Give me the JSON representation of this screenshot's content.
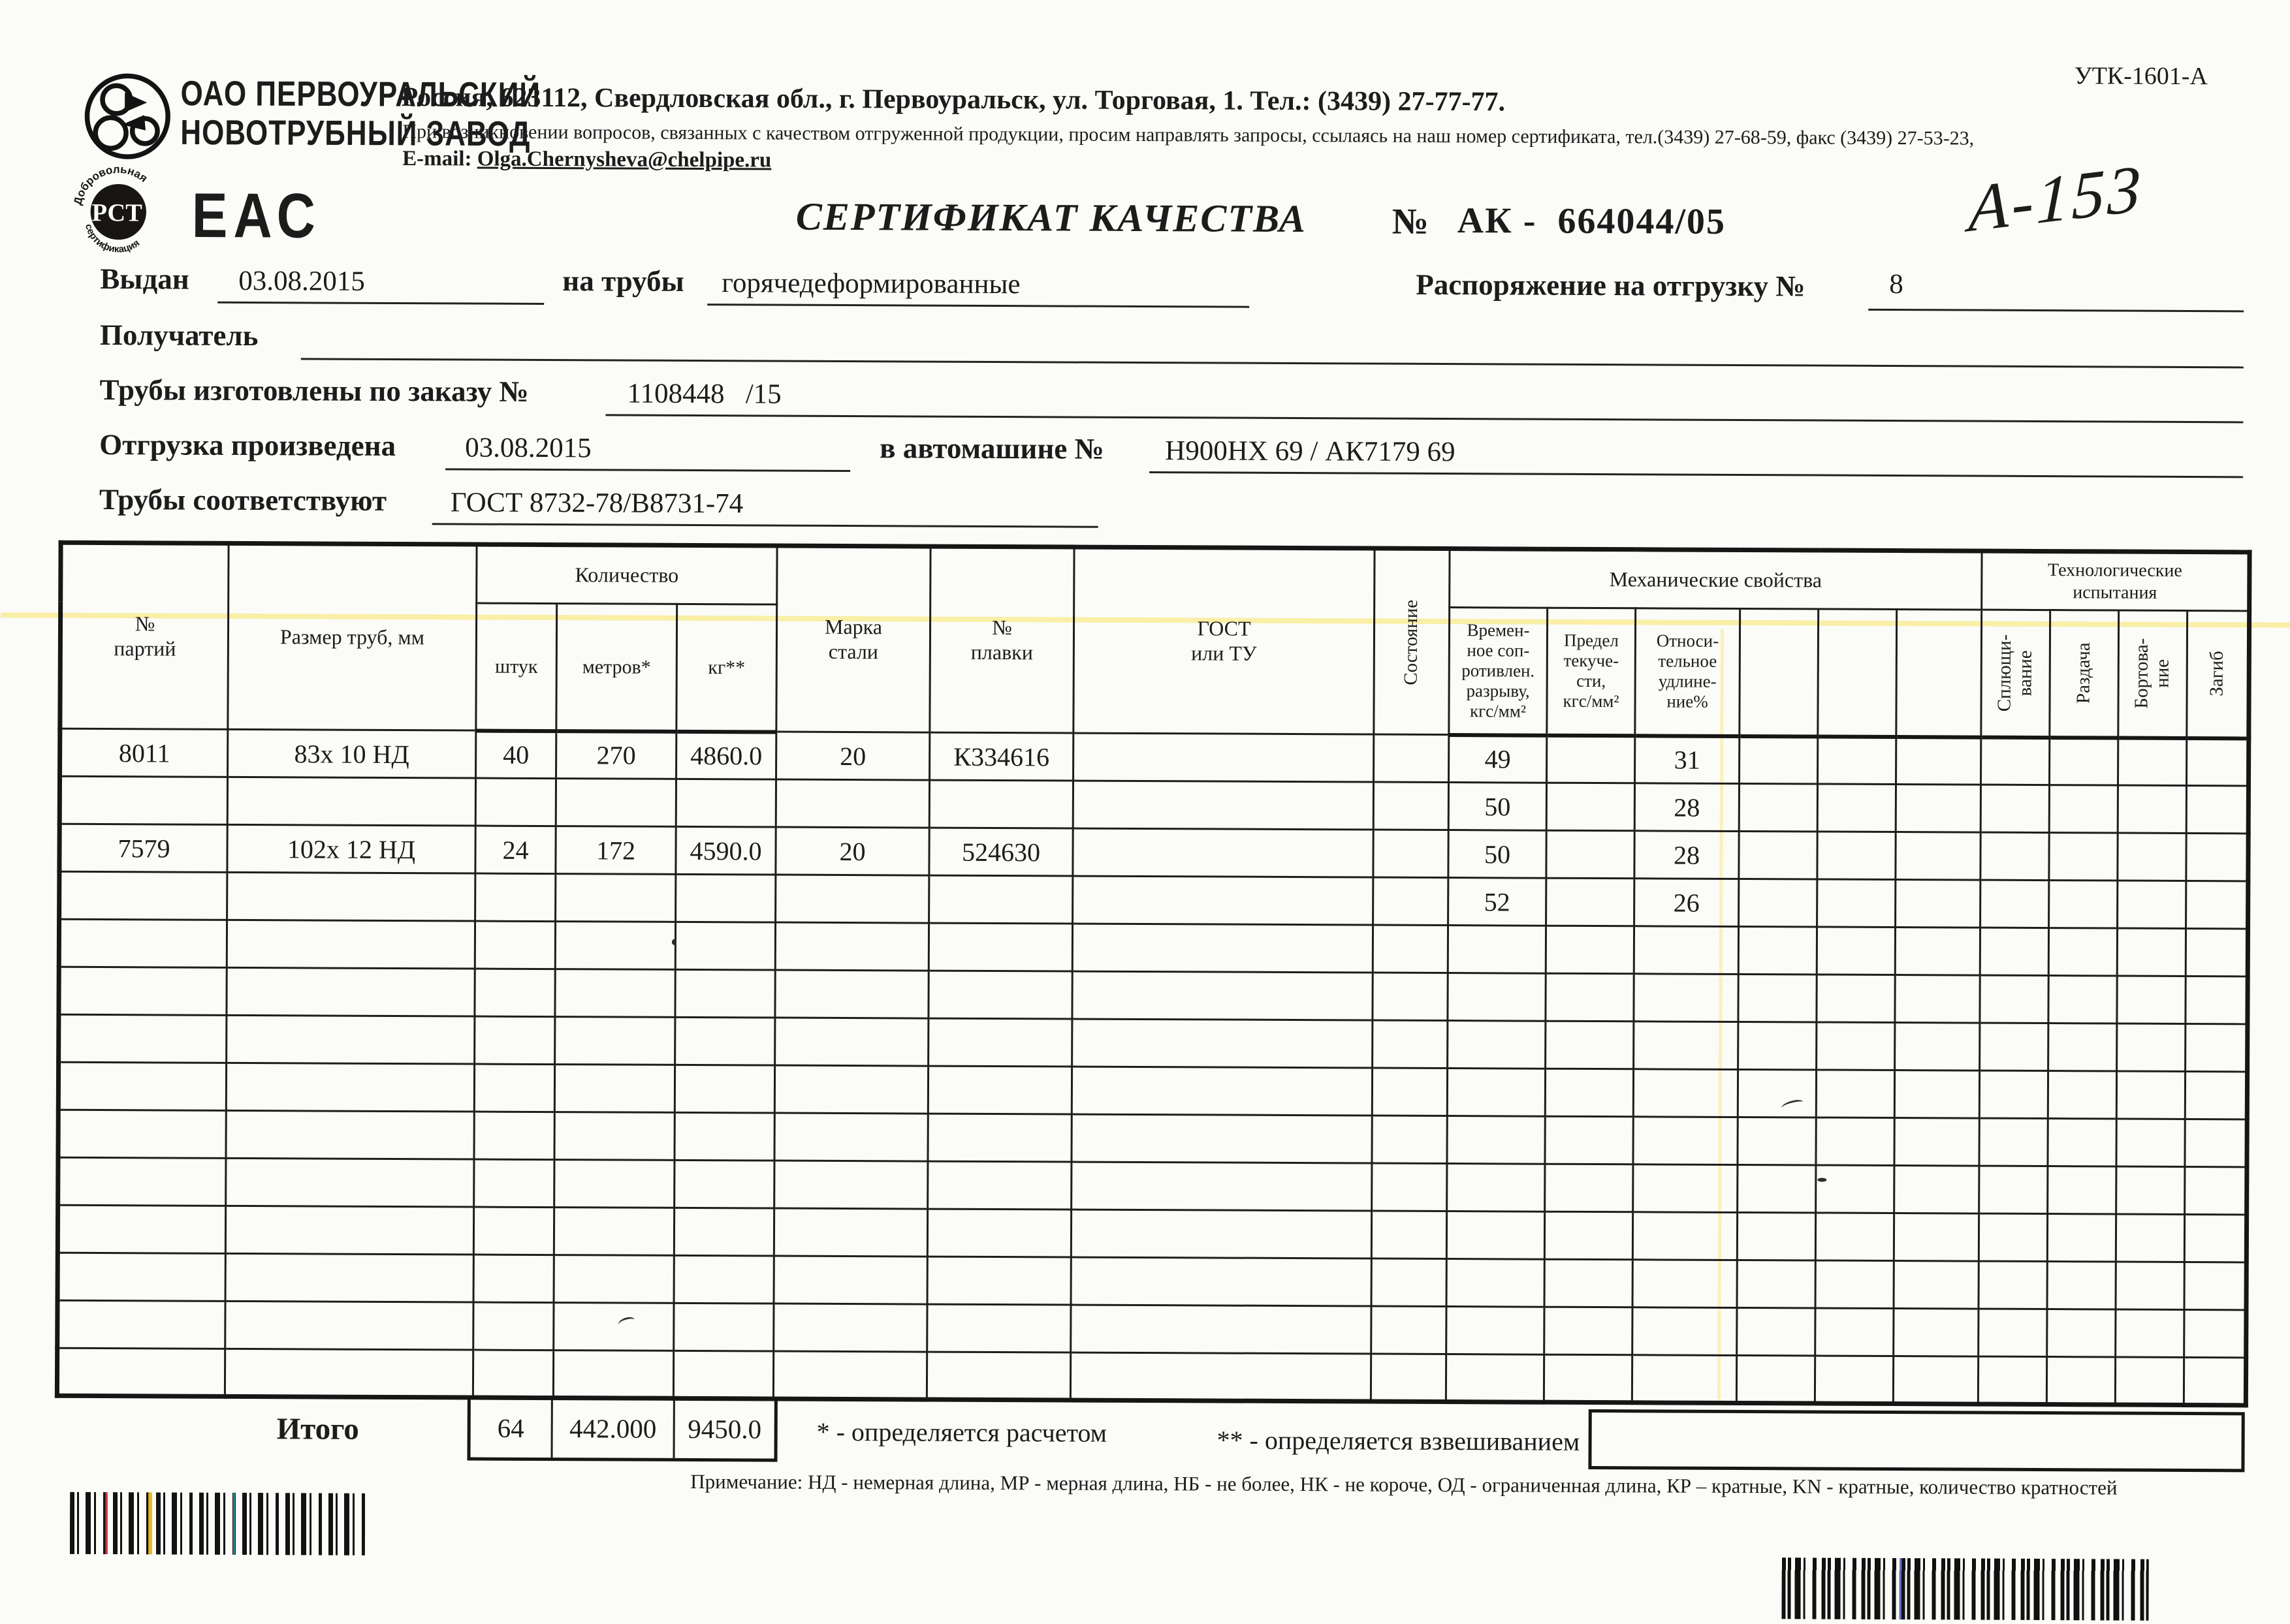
{
  "meta": {
    "form_code": "УТК-1601-А",
    "handwritten_mark": "А-153"
  },
  "colors": {
    "ink": "#1c1c1c",
    "paper": "#fbfbf7",
    "scan_artifact_yellow": "#f7e356"
  },
  "company": {
    "name_line1": "ОАО ПЕРВОУРАЛЬСКИЙ",
    "name_line2": "НОВОТРУБНЫЙ ЗАВОД",
    "address": "Россия, 623112, Свердловская обл., г. Первоуральск, ул. Торговая, 1. Тел.: (3439) 27-77-77.",
    "quality_note": "При возникновении вопросов, связанных с качеством отгруженной продукции, просим направлять запросы, ссылаясь на наш номер сертификата, тел.(3439) 27-68-59, факс (3439) 27-53-23,",
    "email_label": "E-mail:",
    "email": "Olga.Chernysheva@chelpipe.ru",
    "rst_mark_top": "Добровольная",
    "rst_mark_center": "РСТ",
    "rst_mark_bottom": "сертификация",
    "eac_mark": "ЕАС"
  },
  "title": {
    "text": "СЕРТИФИКАТ КАЧЕСТВА",
    "number_label": "№",
    "number": "АК -  664044/05"
  },
  "fields": {
    "issued_label": "Выдан",
    "issued_date": "03.08.2015",
    "for_pipes_label": "на трубы",
    "pipe_type": "горячедеформированные",
    "shipping_order_label": "Распоряжение на отгрузку №",
    "shipping_order": "8",
    "receiver_label": "Получатель",
    "receiver": "",
    "order_label": "Трубы изготовлены по заказу №",
    "order_number": "1108448   /15",
    "shipped_label": "Отгрузка произведена",
    "shipped_date": "03.08.2015",
    "truck_label": "в автомашине №",
    "truck_number": "Н900НХ 69 / АК7179 69",
    "standard_label": "Трубы соответствуют",
    "standard": "ГОСТ 8732-78/В8731-74"
  },
  "table": {
    "headers": {
      "batch": "№\nпартий",
      "size": "Размер труб, мм",
      "quantity_group": "Количество",
      "pieces": "штук",
      "meters": "метров*",
      "kg": "кг**",
      "steel_grade": "Марка\nстали",
      "melt_no": "№\nплавки",
      "gost": "ГОСТ\nили ТУ",
      "state": "Состояние",
      "mech_group": "Механические свойства",
      "tensile": "Времен-\nное соп-\nротивлен.\nразрыву,\nкгс/мм²",
      "yield_strength": "Предел\nтекуче-\nсти,\nкгс/мм²",
      "elongation": "Относи-\nтельное\nудлине-\nние%",
      "tech_group": "Технологические\nиспытания",
      "flattening": "Сплющи-\nвание",
      "expansion": "Раздача",
      "flanging": "Бортова-\nние",
      "bend": "Загиб"
    },
    "rows": [
      [
        "8011",
        "83х 10 НД",
        "40",
        "270",
        "4860.0",
        "20",
        "К334616",
        "",
        "",
        "49",
        "",
        "31",
        "",
        "",
        "",
        "",
        "",
        "",
        ""
      ],
      [
        "",
        "",
        "",
        "",
        "",
        "",
        "",
        "",
        "",
        "50",
        "",
        "28",
        "",
        "",
        "",
        "",
        "",
        "",
        ""
      ],
      [
        "7579",
        "102х 12 НД",
        "24",
        "172",
        "4590.0",
        "20",
        "524630",
        "",
        "",
        "50",
        "",
        "28",
        "",
        "",
        "",
        "",
        "",
        "",
        ""
      ],
      [
        "",
        "",
        "",
        "",
        "",
        "",
        "",
        "",
        "",
        "52",
        "",
        "26",
        "",
        "",
        "",
        "",
        "",
        "",
        ""
      ]
    ],
    "extra_empty_rows": 10,
    "totals": {
      "label": "Итого",
      "pieces": "64",
      "meters": "442.000",
      "kg": "9450.0"
    }
  },
  "footnotes": {
    "star": "* - определяется расчетом",
    "double_star": "** - определяется взвешиванием",
    "note": "Примечание: НД - немерная длина, МР - мерная длина, НБ - не более, НК - не короче, ОД - ограниченная длина, КР – кратные, KN - кратные, количество кратностей"
  }
}
